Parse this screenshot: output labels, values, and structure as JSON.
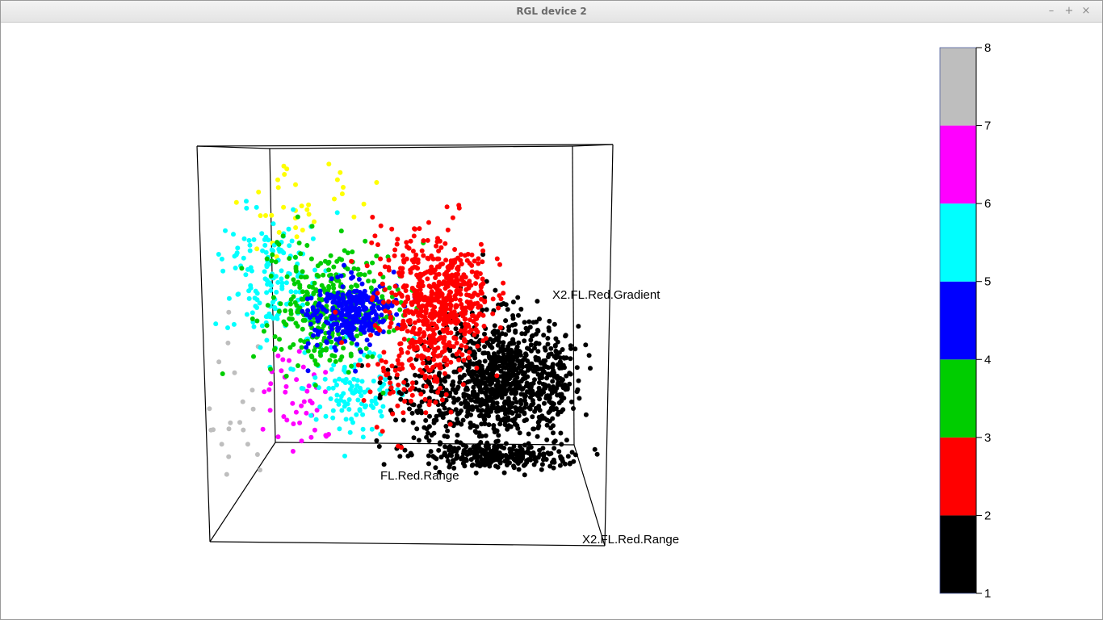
{
  "window": {
    "title": "RGL device 2",
    "controls": {
      "minimize": "–",
      "maximize": "+",
      "close": "×"
    }
  },
  "chart_data": {
    "type": "scatter",
    "dimensions": "3d",
    "axes": {
      "labels": [
        "FL.Red.Range",
        "X2.FL.Red.Range",
        "X2.FL.Red.Gradient"
      ]
    },
    "box": true,
    "clusters": [
      {
        "id": 1,
        "color": "#000000"
      },
      {
        "id": 2,
        "color": "#ff0000"
      },
      {
        "id": 3,
        "color": "#00cd00"
      },
      {
        "id": 4,
        "color": "#0000ff"
      },
      {
        "id": 5,
        "color": "#00ffff"
      },
      {
        "id": 6,
        "color": "#ff00ff"
      },
      {
        "id": 7,
        "color": "#ffff00"
      },
      {
        "id": 8,
        "color": "#bebebe"
      }
    ],
    "colorbar": {
      "range": [
        1,
        8
      ],
      "ticks": [
        "1",
        "2",
        "3",
        "4",
        "5",
        "6",
        "7",
        "8"
      ],
      "placement": "right"
    }
  }
}
